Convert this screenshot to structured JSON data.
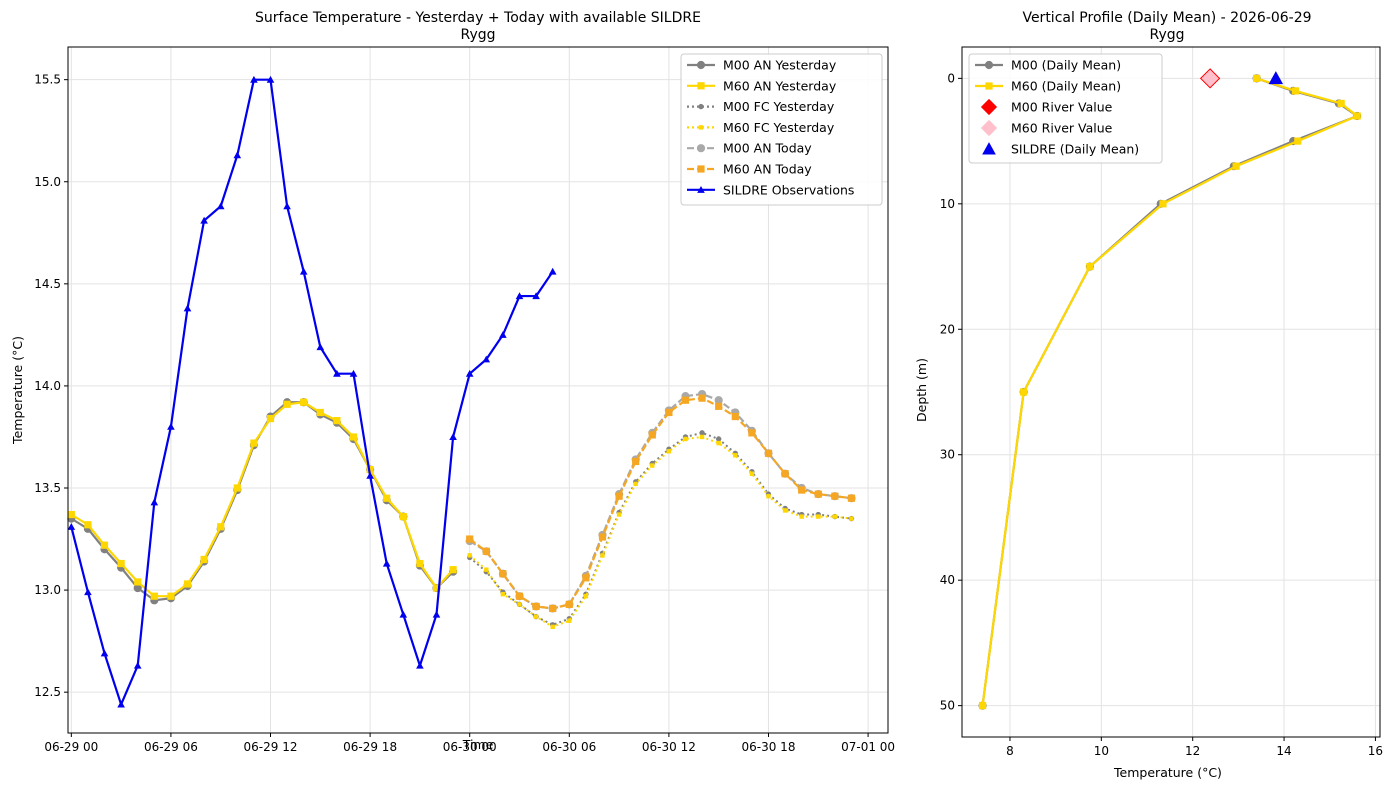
{
  "chart_data": [
    {
      "type": "line",
      "title": "Surface Temperature - Yesterday + Today with available SILDRE",
      "subtitle": "Rygg",
      "xlabel": "Time",
      "ylabel": "Temperature (°C)",
      "xlim": [
        -0.2,
        49.2
      ],
      "ylim": [
        12.3,
        15.66
      ],
      "x_ticks": [
        0,
        6,
        12,
        18,
        24,
        30,
        36,
        42,
        48
      ],
      "x_tick_labels": [
        "06-29 00",
        "06-29 06",
        "06-29 12",
        "06-29 18",
        "06-30 00",
        "06-30 06",
        "06-30 12",
        "06-30 18",
        "07-01 00"
      ],
      "y_ticks": [
        12.5,
        13.0,
        13.5,
        14.0,
        14.5,
        15.0,
        15.5
      ],
      "y_tick_labels": [
        "12.5",
        "13.0",
        "13.5",
        "14.0",
        "14.5",
        "15.0",
        "15.5"
      ],
      "grid": true,
      "legend_position": "top-right",
      "series": [
        {
          "name": "M00 AN Yesterday",
          "color": "#808080",
          "style": "solid",
          "marker": "circle",
          "x": [
            0,
            1,
            2,
            3,
            4,
            5,
            6,
            7,
            8,
            9,
            10,
            11,
            12,
            13,
            14,
            15,
            16,
            17,
            18,
            19,
            20,
            21,
            22,
            23
          ],
          "y": [
            13.35,
            13.3,
            13.2,
            13.11,
            13.01,
            12.95,
            12.96,
            13.02,
            13.14,
            13.3,
            13.49,
            13.71,
            13.85,
            13.92,
            13.92,
            13.86,
            13.82,
            13.74,
            13.59,
            13.44,
            13.36,
            13.12,
            13.01,
            13.09
          ]
        },
        {
          "name": "M60 AN Yesterday",
          "color": "#ffd700",
          "style": "solid",
          "marker": "square",
          "x": [
            0,
            1,
            2,
            3,
            4,
            5,
            6,
            7,
            8,
            9,
            10,
            11,
            12,
            13,
            14,
            15,
            16,
            17,
            18,
            19,
            20,
            21,
            22,
            23
          ],
          "y": [
            13.37,
            13.32,
            13.22,
            13.13,
            13.04,
            12.97,
            12.97,
            13.03,
            13.15,
            13.31,
            13.5,
            13.72,
            13.84,
            13.91,
            13.92,
            13.87,
            13.83,
            13.75,
            13.59,
            13.45,
            13.36,
            13.13,
            13.01,
            13.1
          ]
        },
        {
          "name": "M00 FC Yesterday",
          "color": "#808080",
          "style": "dotted",
          "marker": "circle-small",
          "x": [
            24,
            25,
            26,
            27,
            28,
            29,
            30,
            31,
            32,
            33,
            34,
            35,
            36,
            37,
            38,
            39,
            40,
            41,
            42,
            43,
            44,
            45,
            46,
            47
          ],
          "y": [
            13.16,
            13.09,
            12.99,
            12.93,
            12.87,
            12.83,
            12.86,
            12.98,
            13.18,
            13.38,
            13.53,
            13.62,
            13.69,
            13.75,
            13.77,
            13.74,
            13.67,
            13.58,
            13.47,
            13.4,
            13.37,
            13.37,
            13.36,
            13.35
          ]
        },
        {
          "name": "M60 FC Yesterday",
          "color": "#ffd700",
          "style": "dotted",
          "marker": "square-small",
          "x": [
            24,
            25,
            26,
            27,
            28,
            29,
            30,
            31,
            32,
            33,
            34,
            35,
            36,
            37,
            38,
            39,
            40,
            41,
            42,
            43,
            44,
            45,
            46,
            47
          ],
          "y": [
            13.17,
            13.1,
            12.98,
            12.93,
            12.87,
            12.82,
            12.85,
            12.97,
            13.17,
            13.37,
            13.52,
            13.61,
            13.68,
            13.74,
            13.75,
            13.72,
            13.66,
            13.57,
            13.46,
            13.39,
            13.36,
            13.36,
            13.36,
            13.35
          ]
        },
        {
          "name": "M00 AN Today",
          "color": "#a9a9a9",
          "style": "dashed",
          "marker": "circle",
          "x": [
            24,
            25,
            26,
            27,
            28,
            29,
            30,
            31,
            32,
            33,
            34,
            35,
            36,
            37,
            38,
            39,
            40,
            41,
            42,
            43,
            44,
            45,
            46,
            47
          ],
          "y": [
            13.24,
            13.19,
            13.08,
            12.97,
            12.92,
            12.91,
            12.93,
            13.07,
            13.27,
            13.47,
            13.64,
            13.77,
            13.88,
            13.95,
            13.96,
            13.93,
            13.87,
            13.78,
            13.67,
            13.57,
            13.5,
            13.47,
            13.46,
            13.45
          ]
        },
        {
          "name": "M60 AN Today",
          "color": "#f5a623",
          "style": "dashed",
          "marker": "square",
          "x": [
            24,
            25,
            26,
            27,
            28,
            29,
            30,
            31,
            32,
            33,
            34,
            35,
            36,
            37,
            38,
            39,
            40,
            41,
            42,
            43,
            44,
            45,
            46,
            47
          ],
          "y": [
            13.25,
            13.19,
            13.08,
            12.97,
            12.92,
            12.91,
            12.93,
            13.06,
            13.26,
            13.46,
            13.63,
            13.76,
            13.87,
            13.93,
            13.94,
            13.9,
            13.85,
            13.77,
            13.67,
            13.57,
            13.49,
            13.47,
            13.46,
            13.45
          ]
        },
        {
          "name": "SILDRE Observations",
          "color": "#0000ee",
          "style": "solid",
          "marker": "triangle",
          "x": [
            0,
            1,
            2,
            3,
            4,
            5,
            6,
            7,
            8,
            9,
            10,
            11,
            12,
            13,
            14,
            15,
            16,
            17,
            18,
            19,
            20,
            21,
            22,
            23,
            24,
            25,
            26,
            27,
            28,
            29
          ],
          "y": [
            13.31,
            12.99,
            12.69,
            12.44,
            12.63,
            13.43,
            13.8,
            14.38,
            14.81,
            14.88,
            15.13,
            15.5,
            15.5,
            14.88,
            14.56,
            14.19,
            14.06,
            14.06,
            13.56,
            13.13,
            12.88,
            12.63,
            12.88,
            13.75,
            14.06,
            14.13,
            14.25,
            14.44,
            14.44,
            14.56
          ]
        }
      ]
    },
    {
      "type": "line",
      "title": "Vertical Profile (Daily Mean) - 2026-06-29",
      "subtitle": "Rygg",
      "xlabel": "Temperature (°C)",
      "ylabel": "Depth (m)",
      "xlim": [
        6.95,
        16.1
      ],
      "ylim": [
        52.5,
        -2.5
      ],
      "y_inverted": true,
      "x_ticks": [
        8,
        10,
        12,
        14,
        16
      ],
      "x_tick_labels": [
        "8",
        "10",
        "12",
        "14",
        "16"
      ],
      "y_ticks": [
        0,
        10,
        20,
        30,
        40,
        50
      ],
      "y_tick_labels": [
        "0",
        "10",
        "20",
        "30",
        "40",
        "50"
      ],
      "grid": true,
      "legend_position": "top-left",
      "series": [
        {
          "name": "M00 (Daily Mean)",
          "color": "#808080",
          "style": "solid",
          "marker": "circle",
          "temperature": [
            13.4,
            14.2,
            15.2,
            15.6,
            14.2,
            12.9,
            11.3,
            9.75,
            8.3,
            7.4
          ],
          "depth": [
            0,
            1,
            2,
            3,
            5,
            7,
            10,
            15,
            25,
            50
          ]
        },
        {
          "name": "M60 (Daily Mean)",
          "color": "#ffd700",
          "style": "solid",
          "marker": "square",
          "temperature": [
            13.4,
            14.25,
            15.25,
            15.6,
            14.3,
            12.95,
            11.35,
            9.75,
            8.3,
            7.4
          ],
          "depth": [
            0,
            1,
            2,
            3,
            5,
            7,
            10,
            15,
            25,
            50
          ]
        },
        {
          "name": "M00 River Value",
          "color": "#ff0000",
          "marker": "diamond",
          "temperature": [
            12.38
          ],
          "depth": [
            0
          ]
        },
        {
          "name": "M60 River Value",
          "color": "#ffc0cb",
          "marker": "diamond",
          "temperature": [
            12.38
          ],
          "depth": [
            0
          ]
        },
        {
          "name": "SILDRE (Daily Mean)",
          "color": "#0000ee",
          "marker": "triangle",
          "temperature": [
            13.82
          ],
          "depth": [
            0
          ]
        }
      ]
    }
  ]
}
